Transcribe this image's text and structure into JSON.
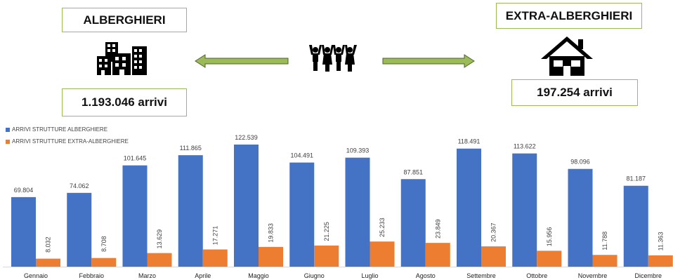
{
  "header": {
    "hotel_title": "ALBERGHIERI",
    "hotel_arrivals": "1.193.046 arrivi",
    "extra_title": "EXTRA-ALBERGHIERI",
    "extra_arrivals": "197.254 arrivi"
  },
  "icons": {
    "left": "hotel-buildings-icon",
    "center": "group-people-icon",
    "right": "house-icon"
  },
  "colors": {
    "hotel": "#4472c4",
    "extra": "#ed7d31",
    "arrow": "#9bbb59",
    "box_border": "#9bbb59"
  },
  "chart_data": {
    "type": "bar",
    "categories": [
      "Gennaio",
      "Febbraio",
      "Marzo",
      "Aprile",
      "Maggio",
      "Giugno",
      "Luglio",
      "Agosto",
      "Settembre",
      "Ottobre",
      "Novembre",
      "Dicembre"
    ],
    "series": [
      {
        "name": "ARRIVI STRUTTURE ALBERGHIERE",
        "values": [
          69804,
          74062,
          101645,
          111865,
          122539,
          104491,
          109393,
          87851,
          118491,
          113622,
          98096,
          81187
        ],
        "labels": [
          "69.804",
          "74.062",
          "101.645",
          "111.865",
          "122.539",
          "104.491",
          "109.393",
          "87.851",
          "118.491",
          "113.622",
          "98.096",
          "81.187"
        ]
      },
      {
        "name": "ARRIVI STRUTTURE EXTRA-ALBERGHIERE",
        "values": [
          8032,
          8708,
          13629,
          17271,
          19833,
          21225,
          25233,
          23849,
          20367,
          15956,
          11788,
          11363
        ],
        "labels": [
          "8.032",
          "8.708",
          "13.629",
          "17.271",
          "19.833",
          "21.225",
          "25.233",
          "23.849",
          "20.367",
          "15.956",
          "11.788",
          "11.363"
        ]
      }
    ],
    "title": "",
    "xlabel": "",
    "ylabel": "",
    "ylim": [
      0,
      125000
    ],
    "grid": false,
    "legend": "top-left"
  }
}
